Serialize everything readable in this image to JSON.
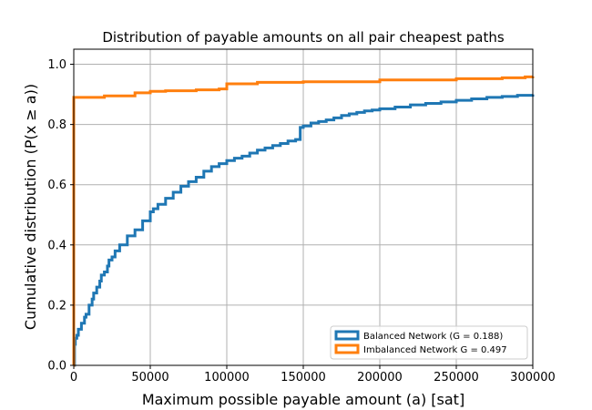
{
  "chart_data": {
    "type": "line",
    "title": "Distribution of payable amounts on all pair cheapest paths",
    "xlabel": "Maximum possible payable amount (a) [sat]",
    "ylabel": "Cumulative distribution (P(x ≥ a))",
    "xlim": [
      0,
      300000
    ],
    "ylim": [
      0,
      1.05
    ],
    "x_ticks": [
      0,
      50000,
      100000,
      150000,
      200000,
      250000,
      300000
    ],
    "y_ticks": [
      0.0,
      0.2,
      0.4,
      0.6,
      0.8,
      1.0
    ],
    "x_tick_labels": [
      "0",
      "50000",
      "100000",
      "150000",
      "200000",
      "250000",
      "300000"
    ],
    "y_tick_labels": [
      "0.0",
      "0.2",
      "0.4",
      "0.6",
      "0.8",
      "1.0"
    ],
    "grid": true,
    "legend_position": "lower-right",
    "series": [
      {
        "name": "Balanced Network (G = 0.188)",
        "color": "#1f77b4",
        "step": true,
        "x": [
          0,
          500,
          1000,
          2000,
          3000,
          5000,
          7000,
          8000,
          10000,
          12000,
          13000,
          15000,
          17000,
          18000,
          20000,
          22000,
          23000,
          25000,
          27000,
          30000,
          35000,
          40000,
          45000,
          50000,
          52000,
          55000,
          60000,
          65000,
          70000,
          75000,
          80000,
          85000,
          90000,
          95000,
          100000,
          105000,
          110000,
          115000,
          120000,
          125000,
          130000,
          135000,
          140000,
          145000,
          147000,
          148000,
          150000,
          155000,
          160000,
          165000,
          170000,
          175000,
          180000,
          185000,
          190000,
          195000,
          200000,
          210000,
          220000,
          230000,
          240000,
          250000,
          260000,
          270000,
          280000,
          290000,
          300000
        ],
        "y": [
          0.0,
          0.07,
          0.09,
          0.1,
          0.12,
          0.14,
          0.16,
          0.17,
          0.2,
          0.22,
          0.24,
          0.26,
          0.28,
          0.3,
          0.31,
          0.33,
          0.35,
          0.36,
          0.38,
          0.4,
          0.43,
          0.45,
          0.48,
          0.51,
          0.52,
          0.535,
          0.555,
          0.575,
          0.595,
          0.61,
          0.625,
          0.645,
          0.66,
          0.67,
          0.68,
          0.688,
          0.695,
          0.705,
          0.715,
          0.722,
          0.73,
          0.737,
          0.745,
          0.75,
          0.75,
          0.79,
          0.795,
          0.805,
          0.81,
          0.815,
          0.822,
          0.83,
          0.835,
          0.84,
          0.845,
          0.848,
          0.852,
          0.858,
          0.865,
          0.87,
          0.875,
          0.88,
          0.885,
          0.89,
          0.893,
          0.897,
          0.9
        ]
      },
      {
        "name": "Imbalanced Network G = 0.497",
        "color": "#ff7f0e",
        "step": true,
        "x": [
          0,
          1,
          20000,
          40000,
          50000,
          60000,
          80000,
          95000,
          100000,
          120000,
          150000,
          200000,
          250000,
          280000,
          295000,
          300000
        ],
        "y": [
          0.0,
          0.89,
          0.895,
          0.905,
          0.91,
          0.912,
          0.915,
          0.918,
          0.935,
          0.94,
          0.942,
          0.948,
          0.952,
          0.955,
          0.958,
          0.96
        ]
      }
    ]
  }
}
